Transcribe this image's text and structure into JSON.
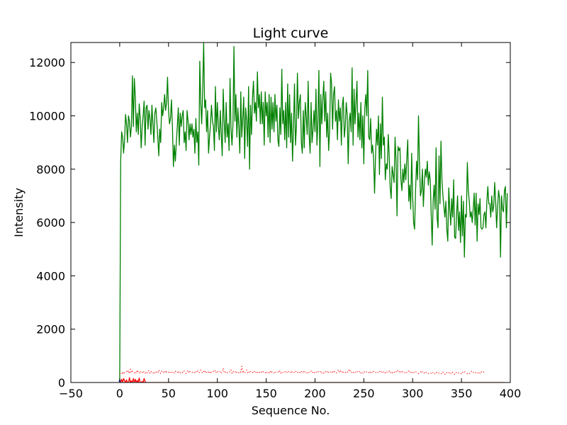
{
  "chart_data": {
    "type": "line",
    "title": "Light curve",
    "xlabel": "Sequence No.",
    "ylabel": "Intensity",
    "xlim": [
      -50,
      400
    ],
    "ylim": [
      0,
      12750
    ],
    "xticks": [
      -50,
      0,
      50,
      100,
      150,
      200,
      250,
      300,
      350,
      400
    ],
    "yticks": [
      0,
      2000,
      4000,
      6000,
      8000,
      10000,
      12000
    ],
    "xtick_labels": [
      "−50",
      "0",
      "50",
      "100",
      "150",
      "200",
      "250",
      "300",
      "350",
      "400"
    ],
    "ytick_labels": [
      "0",
      "2000",
      "4000",
      "6000",
      "8000",
      "10000",
      "12000"
    ],
    "grid": false,
    "series": [
      {
        "color": "#008000",
        "style": "solid",
        "x_start": 0,
        "values": [
          0,
          8300,
          9400,
          9200,
          8600,
          9100,
          10050,
          9700,
          9000,
          10000,
          9800,
          9200,
          9600,
          11500,
          9600,
          11400,
          10700,
          9400,
          10100,
          9300,
          10450,
          9900,
          8800,
          9600,
          10000,
          10550,
          8900,
          10300,
          10400,
          9500,
          10200,
          9900,
          9300,
          10400,
          9700,
          9000,
          10100,
          10300,
          9800,
          9200,
          8500,
          9500,
          9000,
          10500,
          10000,
          10300,
          10800,
          10200,
          10500,
          11450,
          10200,
          9700,
          9900,
          10600,
          9600,
          8100,
          8900,
          8300,
          9000,
          9600,
          10300,
          8900,
          10100,
          9600,
          10000,
          10200,
          9000,
          9400,
          8700,
          10200,
          9800,
          9100,
          9700,
          9300,
          9700,
          9200,
          9500,
          8600,
          9900,
          9000,
          9400,
          8150,
          12050,
          10500,
          9700,
          11000,
          12750,
          10300,
          10600,
          9400,
          10200,
          8600,
          9200,
          9700,
          10400,
          9800,
          9600,
          8700,
          11100,
          9400,
          10500,
          9600,
          9100,
          10200,
          9300,
          8500,
          11000,
          9800,
          9000,
          10500,
          9200,
          9700,
          8700,
          11400,
          9500,
          8900,
          9700,
          12600,
          9800,
          10800,
          9200,
          10300,
          9600,
          8600,
          10900,
          9200,
          9900,
          10700,
          8400,
          10300,
          9800,
          8850,
          11100,
          8000,
          10400,
          9300,
          10700,
          11300,
          10100,
          10500,
          9800,
          11650,
          10300,
          10800,
          9700,
          10900,
          9700,
          10500,
          8900,
          10900,
          10000,
          10500,
          9200,
          10800,
          9000,
          10700,
          9500,
          10500,
          9400,
          10800,
          9800,
          10400,
          9100,
          8850,
          10300,
          9300,
          11750,
          9700,
          10200,
          9100,
          10500,
          8800,
          11200,
          9200,
          10800,
          9000,
          10100,
          8300,
          9600,
          11200,
          8900,
          9600,
          11600,
          9900,
          10500,
          10800,
          9000,
          8600,
          10200,
          8800,
          10500,
          10000,
          9300,
          11300,
          9300,
          8600,
          10500,
          9000,
          9500,
          10200,
          9400,
          11000,
          8900,
          9800,
          11700,
          8100,
          10800,
          9700,
          10600,
          11300,
          9800,
          10900,
          9200,
          10100,
          8700,
          9500,
          11600,
          11200,
          9500,
          10800,
          11100,
          9800,
          10200,
          9100,
          10600,
          9800,
          10300,
          8900,
          10400,
          10700,
          9200,
          9600,
          10500,
          10000,
          8200,
          9800,
          10100,
          9400,
          11800,
          8900,
          11000,
          9700,
          10500,
          11300,
          9200,
          10100,
          9100,
          10500,
          8800,
          10000,
          8200,
          10300,
          10800,
          10000,
          11700,
          9200,
          9100,
          9900,
          8600,
          8900,
          8400,
          7100,
          8500,
          9500,
          8900,
          10000,
          7800,
          9700,
          8400,
          10700,
          8900,
          9200,
          7600,
          8200,
          8000,
          9300,
          8500,
          7300,
          6900,
          8100,
          7800,
          7500,
          9200,
          8300,
          6250,
          8850,
          8700,
          8800,
          7600,
          7200,
          8000,
          7500,
          8200,
          7600,
          8400,
          9100,
          6800,
          7400,
          6500,
          8600,
          7000,
          6000,
          5750,
          7200,
          8300,
          7600,
          10000,
          8200,
          7000,
          7200,
          8000,
          6600,
          7500,
          8000,
          7700,
          8300,
          7400,
          7900,
          7600,
          6300,
          5150,
          6800,
          7400,
          6500,
          8800,
          6200,
          5800,
          8500,
          6700,
          9050,
          7600,
          7000,
          6600,
          6200,
          6800,
          5750,
          5300,
          7300,
          6500,
          5900,
          6900,
          6200,
          7600,
          5450,
          5400,
          6300,
          7000,
          5700,
          6400,
          5250,
          7000,
          5500,
          6800,
          4700,
          6300,
          6200,
          8250,
          7200,
          6800,
          6200,
          6400,
          6000,
          6500,
          7100,
          5900,
          7100,
          5300,
          6700,
          6300,
          6900,
          5800,
          5750,
          5800,
          6300,
          6400,
          5800,
          6800,
          7350,
          6700,
          6700,
          6200,
          7000,
          6400,
          6600,
          7500,
          6800,
          5800,
          6600,
          7200,
          6900,
          4700,
          7000,
          6500,
          6400,
          7200,
          7350,
          5800,
          7100
        ]
      },
      {
        "color": "#ff0000",
        "style": "dotted",
        "x_start": 0,
        "values": [
          330,
          350,
          380,
          300,
          410,
          360,
          390,
          420,
          370,
          460,
          330,
          500,
          360,
          430,
          380,
          360,
          410,
          340,
          470,
          390,
          340,
          430,
          370,
          350,
          440,
          380,
          330,
          410,
          360,
          390,
          450,
          350,
          420,
          370,
          340,
          400,
          360,
          430,
          380,
          350,
          470,
          390,
          330,
          420,
          360,
          400,
          440,
          350,
          410,
          370,
          380,
          430,
          360,
          340,
          410,
          390,
          350,
          420,
          380,
          360,
          440,
          370,
          330,
          410,
          390,
          360,
          430,
          370,
          340,
          400,
          460,
          350,
          410,
          380,
          360,
          420,
          390,
          340,
          400,
          370,
          430,
          360,
          380,
          470,
          390,
          350,
          420,
          370,
          450,
          360,
          400,
          380,
          340,
          430,
          370,
          360,
          420,
          390,
          460,
          350,
          410,
          380,
          370,
          430,
          360,
          400,
          540,
          380,
          350,
          420,
          370,
          360,
          410,
          390,
          470,
          350,
          420,
          380,
          360,
          440,
          370,
          400,
          360,
          420,
          390,
          610,
          350,
          420,
          360,
          390,
          470,
          370,
          430,
          350,
          410,
          380,
          360,
          440,
          390,
          350,
          420,
          370,
          400,
          360,
          430,
          390,
          350,
          410,
          380,
          360,
          420,
          370,
          390,
          360,
          440,
          350,
          410,
          380,
          360,
          420,
          370,
          390,
          400,
          360,
          430,
          350,
          410,
          380,
          370,
          420,
          360,
          390,
          350,
          410,
          380,
          360,
          440,
          370,
          400,
          360,
          420,
          390,
          350,
          410,
          380,
          370,
          430,
          360,
          400,
          350,
          420,
          390,
          360,
          410,
          380,
          370,
          430,
          360,
          400,
          350,
          420,
          390,
          360,
          410,
          380,
          370,
          430,
          360,
          400,
          350,
          420,
          390,
          360,
          440,
          380,
          370,
          410,
          360,
          400,
          350,
          420,
          390,
          360,
          410,
          480,
          370,
          430,
          360,
          400,
          350,
          420,
          390,
          360,
          410,
          380,
          500,
          430,
          360,
          400,
          350,
          420,
          390,
          360,
          410,
          380,
          370,
          430,
          360,
          400,
          350,
          420,
          390,
          360,
          410,
          380,
          370,
          430,
          360,
          400,
          350,
          420,
          390,
          360,
          410,
          380,
          370,
          430,
          360,
          400,
          350,
          420,
          390,
          360,
          410,
          380,
          370,
          430,
          360,
          400,
          350,
          420,
          390,
          360,
          410,
          380,
          470,
          430,
          360,
          400,
          350,
          420,
          390,
          360,
          410,
          380,
          370,
          430,
          360,
          400,
          350,
          420,
          390,
          360,
          410,
          380,
          370,
          330,
          360,
          400,
          350,
          420,
          390,
          360,
          410,
          380,
          370,
          330,
          360,
          340,
          350,
          320,
          390,
          360,
          310,
          380,
          370,
          330,
          360,
          340,
          350,
          320,
          390,
          360,
          310,
          380,
          370,
          330,
          360,
          400,
          350,
          320,
          390,
          360,
          310,
          380,
          370,
          330,
          360,
          340,
          350,
          320,
          390,
          360,
          410,
          380,
          370,
          330,
          360,
          340,
          350,
          420,
          390,
          360,
          410,
          380,
          370,
          330,
          360,
          400,
          350,
          420,
          390,
          360,
          410,
          380
        ]
      },
      {
        "color": "#ff0000",
        "style": "solid",
        "x_start": 0,
        "values": [
          0,
          20,
          120,
          0,
          150,
          60,
          0,
          100,
          0,
          0,
          180,
          0,
          60,
          0,
          150,
          0,
          120,
          0,
          80,
          0,
          170,
          0,
          0,
          40,
          0,
          150,
          30,
          0,
          0,
          0,
          0,
          0,
          0,
          0,
          0,
          0,
          0,
          0,
          0,
          0,
          0,
          0,
          0,
          0,
          0,
          0,
          0,
          0,
          0,
          0,
          0,
          0,
          0,
          0,
          0,
          0,
          0,
          0,
          0,
          0,
          0,
          0,
          0,
          0,
          0,
          0,
          0,
          0,
          0,
          0,
          0,
          0,
          0,
          0,
          0,
          0,
          0,
          0,
          0,
          0,
          0,
          0,
          0,
          0,
          0,
          0,
          0,
          0,
          0,
          0,
          0,
          0,
          0,
          0,
          0,
          0,
          0,
          0,
          0,
          0,
          0,
          0,
          0,
          0,
          0,
          0,
          0,
          0,
          0,
          0,
          0,
          0,
          0,
          0,
          0,
          0,
          0,
          0,
          0,
          0,
          0,
          0,
          0,
          0,
          0,
          0,
          0,
          0,
          0,
          0,
          0,
          0,
          0,
          0,
          0,
          0,
          0,
          0,
          0,
          0,
          0,
          0,
          0,
          0,
          0,
          0,
          0,
          0,
          0,
          0,
          0,
          0,
          0,
          0,
          0,
          0,
          0,
          0,
          0,
          0,
          0,
          0,
          0,
          0,
          0,
          0,
          0,
          0,
          0,
          0,
          0,
          0,
          0,
          0,
          0,
          0,
          0,
          0,
          0,
          0,
          0,
          0,
          0,
          0,
          0,
          0,
          0,
          0,
          0,
          0,
          0,
          0,
          0,
          0,
          0,
          0,
          0,
          0,
          0,
          0,
          0,
          0,
          0,
          0,
          0,
          0,
          0,
          0,
          0,
          0,
          0,
          0,
          0,
          0,
          0,
          0,
          0,
          0,
          0,
          0,
          0,
          0,
          0,
          0,
          0,
          0,
          0,
          0,
          0,
          0,
          0,
          0,
          0,
          0,
          0,
          0,
          0,
          0,
          0,
          0,
          0,
          0,
          0,
          0,
          0,
          0,
          0,
          0,
          0,
          0,
          0,
          0,
          0,
          0,
          0,
          0,
          0,
          0,
          0,
          0,
          0,
          0,
          0,
          0,
          0,
          0,
          0,
          0,
          0,
          0,
          0,
          0,
          0,
          0,
          0,
          0,
          0,
          0,
          0,
          0,
          0,
          0,
          0,
          0,
          0,
          0,
          0,
          0,
          0,
          0,
          0,
          0,
          0,
          0,
          0,
          0,
          0,
          0,
          0,
          0,
          0,
          0,
          0,
          0,
          0,
          0,
          0,
          0,
          0,
          0,
          0,
          0,
          0,
          0,
          0,
          0,
          0,
          0,
          0,
          0,
          0,
          0,
          0,
          0,
          0,
          0,
          0,
          0,
          0,
          0,
          0,
          0,
          0,
          0,
          0,
          0,
          0,
          0,
          0,
          0,
          0,
          0,
          0,
          0,
          0,
          0,
          0,
          0,
          0,
          0,
          0,
          0,
          0,
          0,
          0,
          0,
          0,
          0,
          0,
          0,
          0,
          0,
          0,
          0,
          0,
          0,
          0,
          0,
          0,
          0,
          0,
          0,
          0,
          0,
          0,
          0,
          0,
          0,
          0,
          0,
          0,
          0,
          0,
          0,
          0,
          0,
          0,
          0,
          0,
          0,
          0,
          0,
          0,
          0,
          0
        ]
      },
      {
        "color": "#0000ff",
        "style": "solid",
        "x_start": -1,
        "values": [
          60,
          60,
          60
        ]
      }
    ]
  }
}
